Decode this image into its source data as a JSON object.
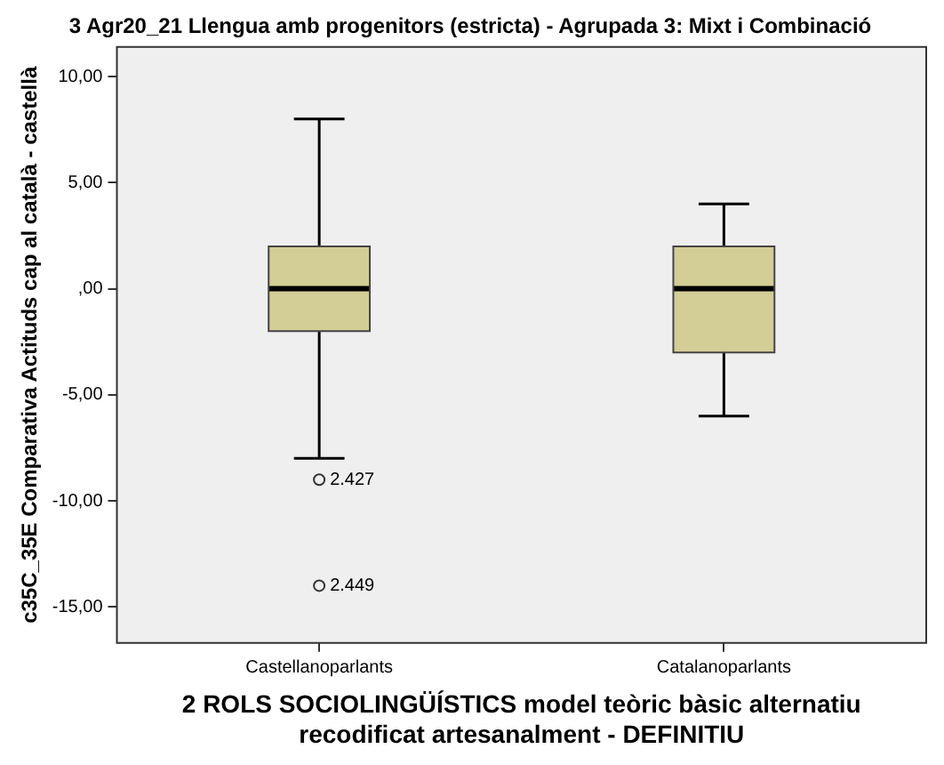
{
  "chart_data": {
    "type": "box",
    "title": "3 Agr20_21 Llengua amb progenitors (estricta) - Agrupada 3: Mixt i Combinació",
    "xlabel": "2 ROLS SOCIOLINGÜÍSTICS model teòric bàsic alternatiu recodificat artesanalment - DEFINITIU",
    "ylabel": "c35C_35E Comparativa Actituds cap al català - castellà",
    "categories": [
      "Castellanoparlants",
      "Catalanoparlants"
    ],
    "color": "#d3cd96",
    "boxes": [
      {
        "low": -8,
        "q1": -2,
        "median": 0,
        "q3": 2,
        "high": 8,
        "outliers": [
          -9,
          -14
        ]
      },
      {
        "low": -6,
        "q1": -3,
        "median": 0,
        "q3": 2,
        "high": 4
      }
    ],
    "ylim": [
      -16.7,
      11.4
    ],
    "yticks": [
      {
        "value": 10,
        "label": "10,00"
      },
      {
        "value": 5,
        "label": "5,00"
      },
      {
        "value": 0,
        "label": ",00"
      },
      {
        "value": -5,
        "label": "-5,00"
      },
      {
        "value": -10,
        "label": "-10,00"
      },
      {
        "value": -15,
        "label": "-15,00"
      }
    ],
    "grid": false,
    "legend": false,
    "annotations": [
      "2.427",
      "2.449"
    ]
  }
}
